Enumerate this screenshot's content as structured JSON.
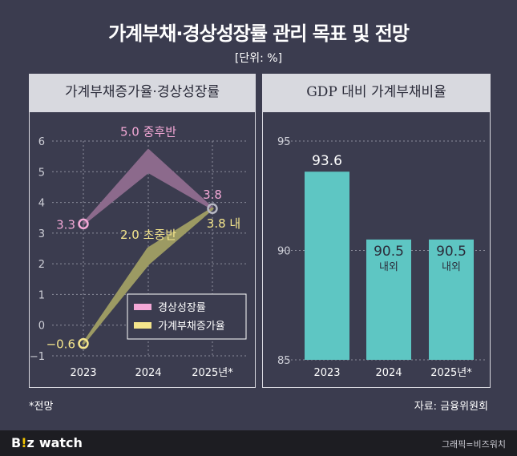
{
  "header": {
    "title": "가계부채·경상성장률 관리 목표 및 전망",
    "unit": "[단위: %]"
  },
  "colors": {
    "background": "#3b3c4f",
    "pink": "#f3a8d6",
    "pink_band": "#8c6a8c",
    "yellow": "#f4e58c",
    "yellow_band": "#9c9a63",
    "teal": "#5ec6c3"
  },
  "chart_data": [
    {
      "type": "line",
      "title": "가계부채증가율·경상성장률",
      "x": [
        "2023",
        "2024",
        "2025년*"
      ],
      "ylim": [
        -1,
        6
      ],
      "yticks": [
        "−1",
        "0",
        "1",
        "2",
        "3",
        "4",
        "5",
        "6"
      ],
      "series": [
        {
          "name": "경상성장률",
          "values": [
            3.3,
            5.0,
            3.8
          ],
          "labels": [
            "3.3",
            "5.0 중후반",
            "3.8"
          ],
          "band_high": [
            3.3,
            5.7,
            3.8
          ]
        },
        {
          "name": "가계부채증가율",
          "values": [
            -0.6,
            2.0,
            3.8
          ],
          "labels": [
            "−0.6",
            "2.0 초중반",
            "3.8 내"
          ],
          "band_high": [
            -0.6,
            2.5,
            3.8
          ]
        }
      ],
      "legend": [
        "경상성장률",
        "가계부채증가율"
      ],
      "legend_position": "bottom-right",
      "grid": "horizontal"
    },
    {
      "type": "bar",
      "title": "GDP 대비 가계부채비율",
      "categories": [
        "2023",
        "2024",
        "2025년*"
      ],
      "values": [
        93.6,
        90.5,
        90.5
      ],
      "value_labels": [
        "93.6",
        "90.5",
        "90.5"
      ],
      "sub_labels": [
        "",
        "내외",
        "내외"
      ],
      "ylim": [
        85,
        95
      ],
      "yticks": [
        "85",
        "90",
        "95"
      ],
      "grid": "horizontal"
    }
  ],
  "footer": {
    "note": "*전망",
    "source": "자료: 금융위원회",
    "logo_b": "B",
    "logo_i": "!",
    "logo_z": "z",
    "logo_watch": "watch",
    "credit": "그래픽=비즈워치"
  }
}
